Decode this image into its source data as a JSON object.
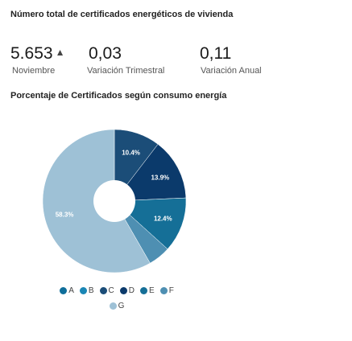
{
  "header": {
    "title": "Número total de certificados energéticos de vivienda"
  },
  "kpis": [
    {
      "value": "5.653",
      "arrow": "▲",
      "label": "Noviembre"
    },
    {
      "value": "0,03",
      "label": "Variación Trimestral"
    },
    {
      "value": "0,11",
      "label": "Variación Anual"
    }
  ],
  "chart": {
    "subtitle": "Porcentaje de Certificados según consumo energía"
  },
  "chart_data": {
    "type": "pie",
    "title": "Porcentaje de Certificados según consumo energía",
    "categories": [
      "A",
      "B",
      "C",
      "D",
      "E",
      "F",
      "G"
    ],
    "values": [
      0,
      0,
      10.4,
      13.9,
      12.4,
      5.0,
      58.3
    ],
    "labels": [
      "",
      "",
      "10.4%",
      "13.9%",
      "12.4%",
      "",
      "58.3%"
    ],
    "colors": [
      "#0f6e9a",
      "#1a86b5",
      "#1b4d78",
      "#0b3a6b",
      "#156f97",
      "#4e8fb2",
      "#9ec1d6"
    ],
    "legend": [
      "A",
      "B",
      "C",
      "D",
      "E",
      "F",
      "G"
    ],
    "legend_position": "bottom"
  }
}
